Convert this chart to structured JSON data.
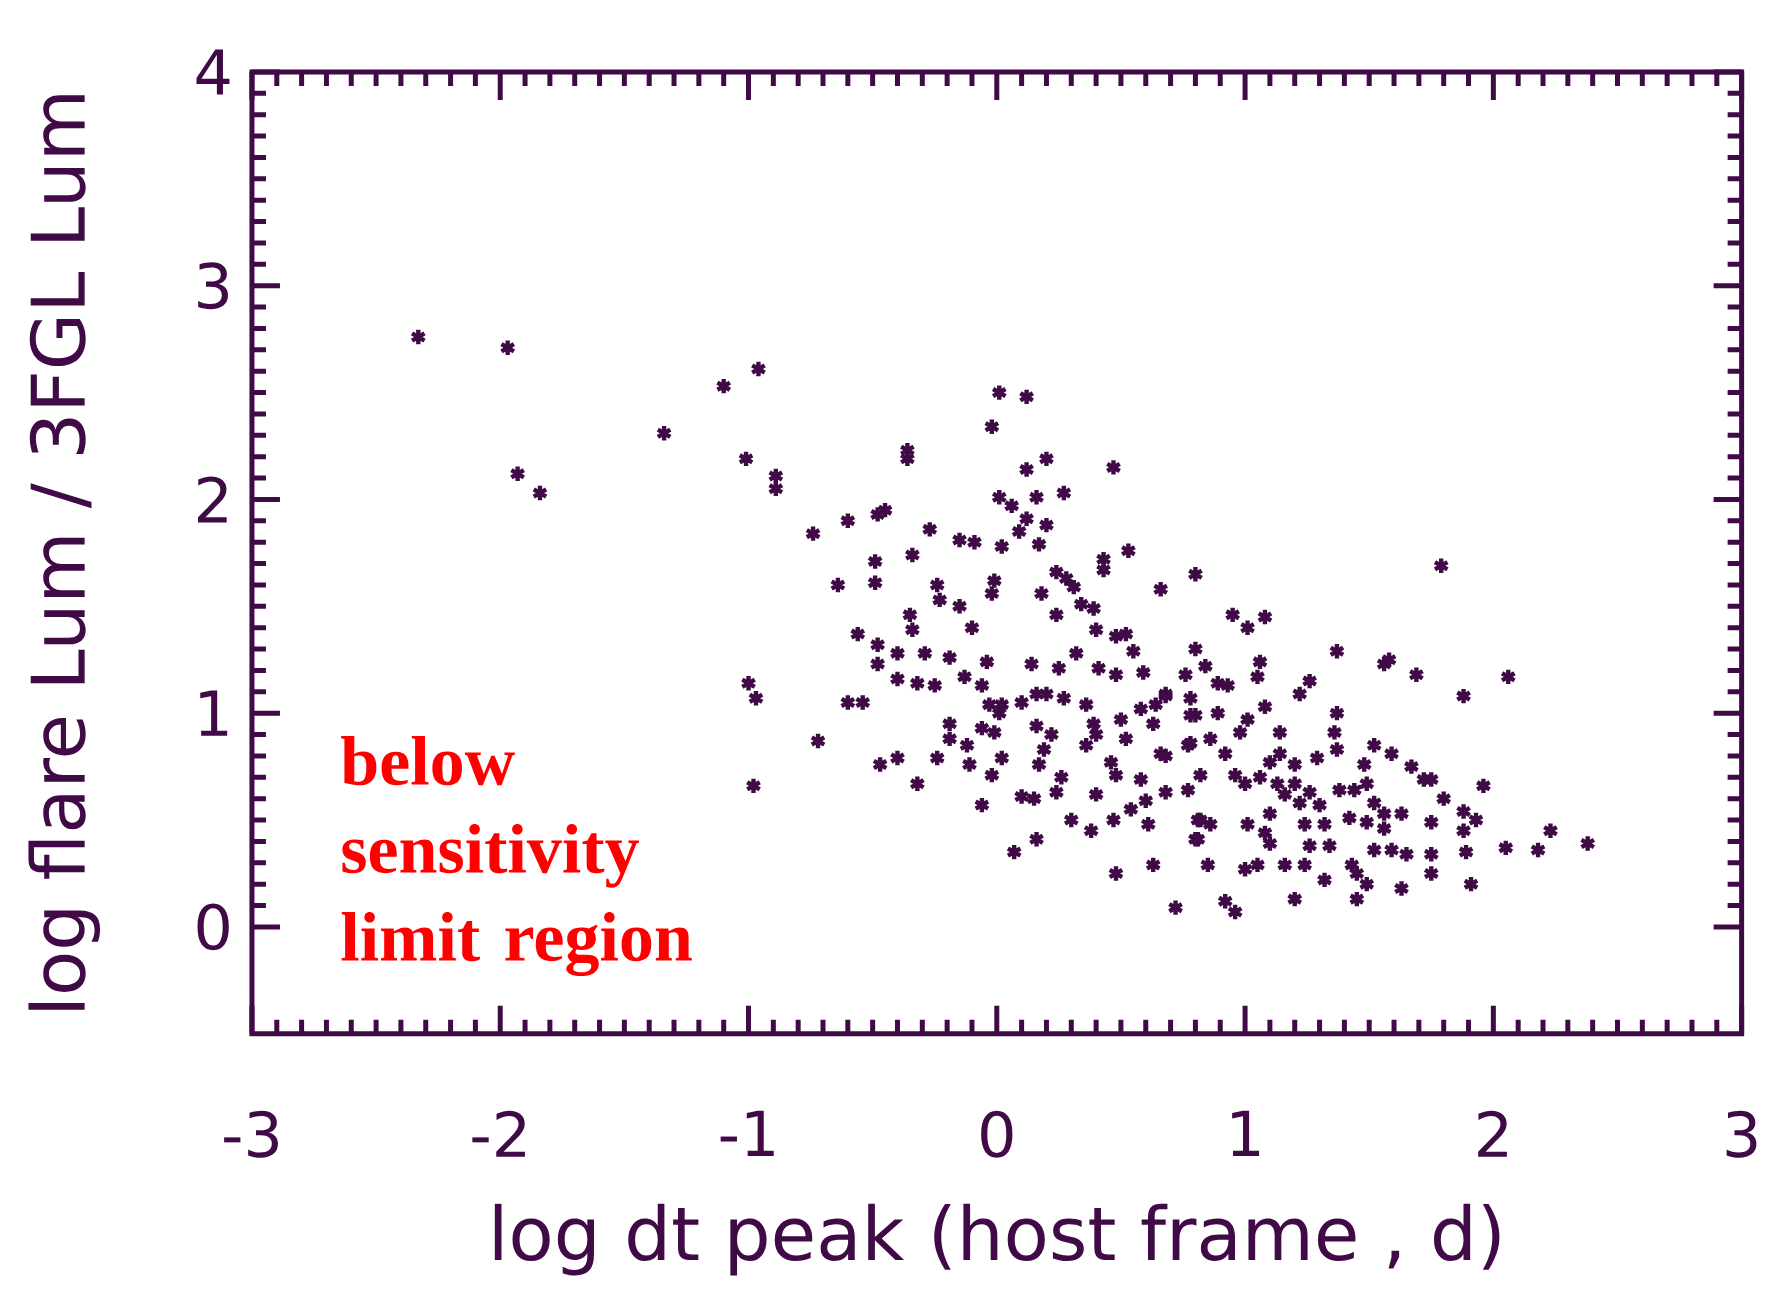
{
  "chart_data": {
    "type": "scatter",
    "xlabel": "log dt peak (host frame , d)",
    "ylabel": "log flare Lum / 3FGL Lum",
    "annotations": [
      "below sensitivity limit region"
    ],
    "xlim": [
      -3,
      3
    ],
    "ylim": [
      -0.5,
      4
    ],
    "xticks": [
      -3,
      -2,
      -1,
      0,
      1,
      2,
      3
    ],
    "yticks": [
      0,
      1,
      2,
      3,
      4
    ],
    "marker": "cross",
    "series": [
      {
        "color": "#3f0a46",
        "x": [
          -2.33,
          -1.97,
          -1.93,
          -1.84,
          -1.34,
          -1.1,
          -0.96,
          -1.01,
          -0.89,
          -0.89,
          -0.74,
          -0.64,
          -1.0,
          -0.97,
          -0.72,
          -0.98,
          0.01,
          0.12,
          -0.02,
          -0.36,
          -0.36,
          0.12,
          0.2,
          0.47,
          0.27,
          0.01,
          0.06,
          0.16,
          0.12,
          0.09,
          0.2,
          0.17,
          0.02,
          -0.6,
          -0.48,
          -0.45,
          -0.27,
          -0.15,
          -0.09,
          -0.34,
          -0.49,
          -0.49,
          -0.24,
          -0.23,
          -0.15,
          -0.01,
          -0.02,
          0.24,
          0.28,
          0.31,
          0.43,
          0.43,
          0.53,
          0.66,
          0.8,
          0.18,
          0.24,
          0.34,
          0.39,
          0.4,
          -0.1,
          -0.35,
          -0.34,
          -0.56,
          -0.48,
          -0.48,
          -0.4,
          -0.4,
          -0.29,
          -0.32,
          -0.25,
          -0.19,
          -0.13,
          -0.04,
          -0.06,
          -0.03,
          0.02,
          0.14,
          0.25,
          0.32,
          0.48,
          0.52,
          0.55,
          0.41,
          0.48,
          0.59,
          0.8,
          0.76,
          -0.6,
          -0.54,
          -0.47,
          -0.4,
          -0.32,
          -0.24,
          -0.19,
          -0.19,
          -0.12,
          -0.11,
          -0.06,
          -0.01,
          0.01,
          -0.02,
          0.02,
          -0.06,
          0.1,
          0.16,
          0.2,
          0.27,
          0.16,
          0.22,
          0.19,
          0.17,
          0.26,
          0.24,
          0.1,
          0.15,
          0.36,
          0.39,
          0.36,
          0.4,
          0.5,
          0.52,
          0.58,
          0.64,
          0.68,
          0.63,
          0.78,
          0.77,
          0.66,
          0.46,
          0.48,
          0.58,
          0.6,
          0.68,
          0.54,
          0.4,
          0.38,
          0.3,
          0.47,
          0.61,
          0.16,
          0.07,
          0.48,
          0.63,
          0.72,
          0.8,
          0.81,
          1.79,
          0.95,
          1.01,
          1.08,
          0.84,
          1.06,
          1.05,
          1.37,
          1.56,
          1.58,
          1.69,
          2.06,
          1.88,
          1.26,
          1.22,
          0.68,
          0.78,
          0.89,
          0.93,
          0.8,
          0.89,
          1.08,
          1.37,
          1.36,
          1.37,
          1.01,
          0.98,
          1.14,
          0.78,
          0.86,
          0.92,
          0.68,
          0.77,
          0.82,
          1.14,
          1.1,
          1.2,
          1.29,
          0.96,
          1.0,
          1.06,
          1.13,
          1.2,
          1.26,
          1.3,
          1.22,
          1.16,
          1.1,
          1.38,
          1.44,
          1.48,
          1.52,
          1.59,
          1.67,
          1.72,
          1.75,
          1.96,
          1.8,
          1.49,
          1.52,
          1.56,
          1.49,
          1.56,
          1.63,
          1.42,
          1.75,
          1.88,
          1.93,
          1.88,
          2.23,
          0.82,
          0.81,
          0.86,
          1.01,
          1.08,
          1.1,
          1.24,
          1.32,
          1.26,
          1.34,
          1.52,
          1.59,
          1.65,
          1.75,
          1.89,
          2.05,
          2.18,
          0.85,
          1.0,
          1.05,
          1.16,
          1.24,
          1.43,
          1.75,
          1.32,
          1.45,
          1.49,
          1.63,
          1.91,
          1.45,
          1.2,
          0.92,
          0.96,
          2.38
        ],
        "values": [
          2.76,
          2.71,
          2.12,
          2.03,
          2.31,
          2.53,
          2.61,
          2.19,
          2.11,
          2.05,
          1.84,
          1.6,
          1.14,
          1.07,
          0.87,
          0.66,
          2.5,
          2.48,
          2.34,
          2.23,
          2.19,
          2.14,
          2.19,
          2.15,
          2.03,
          2.01,
          1.97,
          2.01,
          1.91,
          1.85,
          1.88,
          1.79,
          1.78,
          1.9,
          1.93,
          1.95,
          1.86,
          1.81,
          1.8,
          1.74,
          1.71,
          1.61,
          1.6,
          1.53,
          1.5,
          1.62,
          1.56,
          1.66,
          1.63,
          1.59,
          1.72,
          1.67,
          1.76,
          1.58,
          1.65,
          1.56,
          1.46,
          1.51,
          1.49,
          1.39,
          1.4,
          1.46,
          1.39,
          1.37,
          1.32,
          1.23,
          1.28,
          1.16,
          1.28,
          1.14,
          1.13,
          1.26,
          1.17,
          1.24,
          1.13,
          1.04,
          1.04,
          1.23,
          1.21,
          1.28,
          1.36,
          1.37,
          1.29,
          1.21,
          1.18,
          1.19,
          1.3,
          1.18,
          1.05,
          1.05,
          0.76,
          0.79,
          0.67,
          0.79,
          0.95,
          0.88,
          0.85,
          0.76,
          0.93,
          0.91,
          1.0,
          0.71,
          0.79,
          0.57,
          1.05,
          1.09,
          1.09,
          1.07,
          0.94,
          0.9,
          0.83,
          0.76,
          0.7,
          0.63,
          0.61,
          0.6,
          1.04,
          0.95,
          0.85,
          0.9,
          0.97,
          0.88,
          1.02,
          1.04,
          1.09,
          0.95,
          0.99,
          0.85,
          0.81,
          0.77,
          0.71,
          0.69,
          0.59,
          0.63,
          0.55,
          0.62,
          0.45,
          0.5,
          0.5,
          0.48,
          0.41,
          0.35,
          0.25,
          0.29,
          0.09,
          0.41,
          0.5,
          1.69,
          1.46,
          1.4,
          1.45,
          1.22,
          1.24,
          1.17,
          1.29,
          1.23,
          1.25,
          1.18,
          1.17,
          1.08,
          1.15,
          1.09,
          1.08,
          1.07,
          1.14,
          1.13,
          0.99,
          1.0,
          1.03,
          1.0,
          0.91,
          0.83,
          0.97,
          0.91,
          0.91,
          0.86,
          0.88,
          0.81,
          0.8,
          0.64,
          0.71,
          0.81,
          0.77,
          0.76,
          0.79,
          0.71,
          0.67,
          0.7,
          0.67,
          0.67,
          0.63,
          0.57,
          0.58,
          0.62,
          0.53,
          0.64,
          0.64,
          0.76,
          0.85,
          0.81,
          0.75,
          0.69,
          0.69,
          0.66,
          0.6,
          0.67,
          0.58,
          0.53,
          0.49,
          0.46,
          0.53,
          0.51,
          0.49,
          0.54,
          0.5,
          0.45,
          0.45,
          0.5,
          0.41,
          0.48,
          0.48,
          0.44,
          0.39,
          0.48,
          0.48,
          0.38,
          0.38,
          0.36,
          0.36,
          0.34,
          0.34,
          0.35,
          0.37,
          0.36,
          0.29,
          0.27,
          0.29,
          0.29,
          0.29,
          0.29,
          0.25,
          0.22,
          0.25,
          0.2,
          0.18,
          0.2,
          0.13,
          0.13,
          0.12,
          0.07,
          0.39
        ]
      }
    ]
  }
}
